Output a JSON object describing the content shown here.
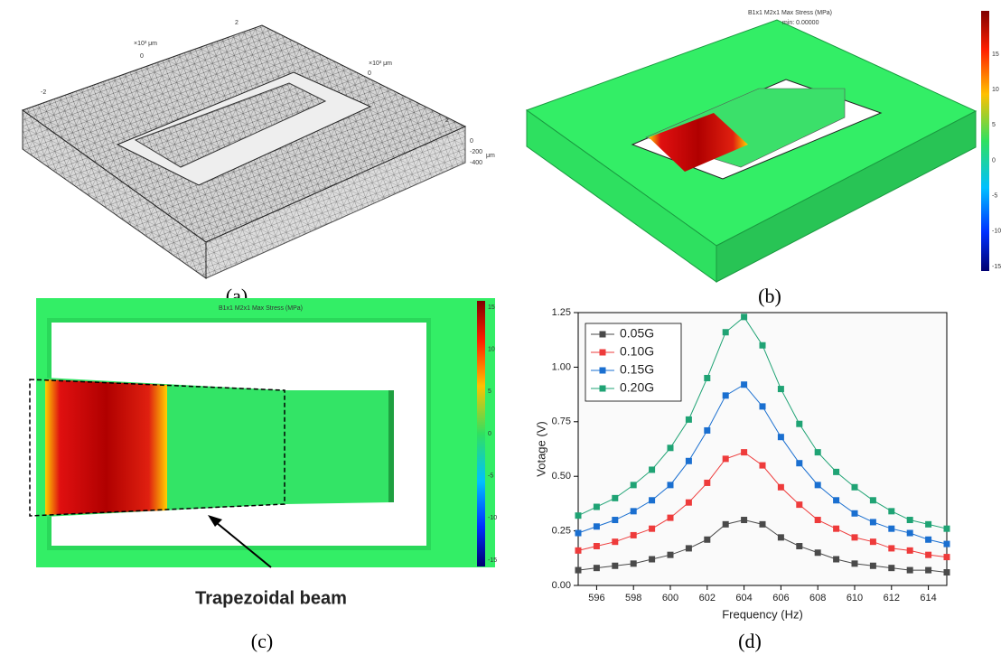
{
  "panel_a": {
    "label": "(a)",
    "unit_top": "×10³ μm",
    "ticks_top": [
      "-2",
      "0",
      "2"
    ],
    "unit_right": "×10³ μm",
    "ticks_right": [
      "0",
      "2"
    ],
    "z_ticks": [
      "0",
      "-200",
      "-400"
    ],
    "z_unit": "μm"
  },
  "panel_b": {
    "label": "(b)",
    "title": "B1x1 M2x1 Max Stress (MPa)",
    "min_note": "min: 0.00000",
    "colorbar_ticks": [
      "15",
      "10",
      "5",
      "0",
      "-5",
      "-10",
      "-15"
    ]
  },
  "panel_c": {
    "label": "(c)",
    "title": "B1x1 M2x1 Max Stress (MPa)",
    "colorbar_ticks": [
      "15",
      "10",
      "5",
      "0",
      "-5",
      "-10",
      "-15"
    ],
    "annotation": "Trapezoidal beam"
  },
  "chart_data": {
    "type": "line",
    "label": "(d)",
    "x_label": "Frequency (Hz)",
    "y_label": "Votage (V)",
    "x": [
      595,
      596,
      597,
      598,
      599,
      600,
      601,
      602,
      603,
      604,
      605,
      606,
      607,
      608,
      609,
      610,
      611,
      612,
      613,
      614,
      615
    ],
    "series": [
      {
        "name": "0.05G",
        "color": "#4a4a4a",
        "values": [
          0.07,
          0.08,
          0.09,
          0.1,
          0.12,
          0.14,
          0.17,
          0.21,
          0.28,
          0.3,
          0.28,
          0.22,
          0.18,
          0.15,
          0.12,
          0.1,
          0.09,
          0.08,
          0.07,
          0.07,
          0.06
        ]
      },
      {
        "name": "0.10G",
        "color": "#ee3b3b",
        "values": [
          0.16,
          0.18,
          0.2,
          0.23,
          0.26,
          0.31,
          0.38,
          0.47,
          0.58,
          0.61,
          0.55,
          0.45,
          0.37,
          0.3,
          0.26,
          0.22,
          0.2,
          0.17,
          0.16,
          0.14,
          0.13
        ]
      },
      {
        "name": "0.15G",
        "color": "#1a6fd0",
        "values": [
          0.24,
          0.27,
          0.3,
          0.34,
          0.39,
          0.46,
          0.57,
          0.71,
          0.87,
          0.92,
          0.82,
          0.68,
          0.56,
          0.46,
          0.39,
          0.33,
          0.29,
          0.26,
          0.24,
          0.21,
          0.19
        ]
      },
      {
        "name": "0.20G",
        "color": "#1fa374",
        "values": [
          0.32,
          0.36,
          0.4,
          0.46,
          0.53,
          0.63,
          0.76,
          0.95,
          1.16,
          1.23,
          1.1,
          0.9,
          0.74,
          0.61,
          0.52,
          0.45,
          0.39,
          0.34,
          0.3,
          0.28,
          0.26
        ]
      }
    ],
    "xlim": [
      595,
      615
    ],
    "xticks": [
      596,
      598,
      600,
      602,
      604,
      606,
      608,
      610,
      612,
      614
    ],
    "ylim": [
      0,
      1.25
    ],
    "yticks": [
      {
        "value": 0,
        "label": "0.00"
      },
      0.25,
      {
        "value": 0.5,
        "label": "0.50"
      },
      0.75,
      {
        "value": 1,
        "label": "1.00"
      },
      1.25
    ],
    "legend": "upper-left",
    "grid": false
  }
}
